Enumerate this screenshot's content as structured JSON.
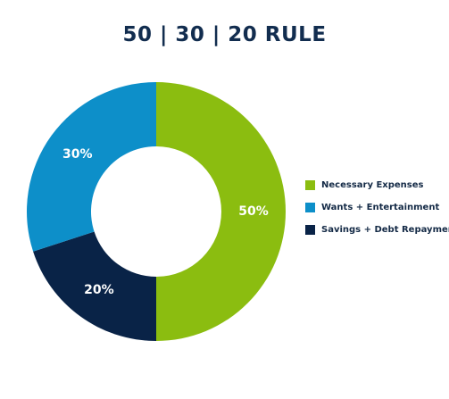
{
  "chart_data": {
    "type": "pie",
    "title": "50 | 30 | 20 RULE",
    "donut": true,
    "slices": [
      {
        "name": "Necessary Expenses",
        "value": 50,
        "label": "50%",
        "color": "#8bbd10"
      },
      {
        "name": "Savings + Debt Repayment",
        "value": 20,
        "label": "20%",
        "color": "#092347"
      },
      {
        "name": "Wants + Entertainment",
        "value": 30,
        "label": "30%",
        "color": "#0d8fc9"
      }
    ],
    "legend": {
      "placement": "right",
      "items": [
        {
          "name": "Necessary Expenses",
          "color": "#8bbd10"
        },
        {
          "name": "Wants + Entertainment",
          "color": "#0d8fc9"
        },
        {
          "name": "Savings + Debt Repayment",
          "color": "#092347"
        }
      ]
    }
  }
}
